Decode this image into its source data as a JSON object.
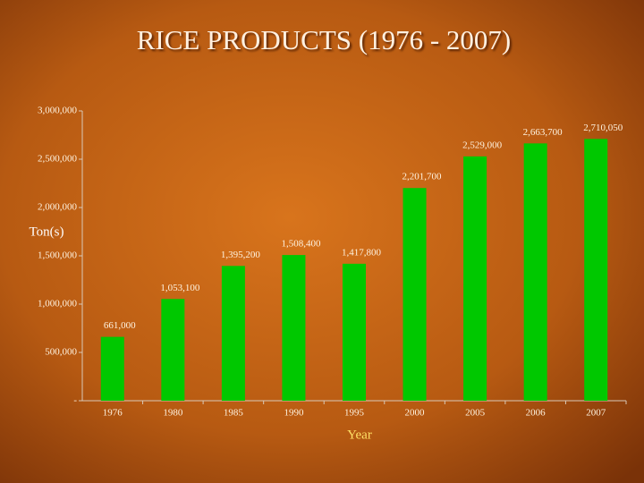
{
  "chart_data": {
    "type": "bar",
    "title": "RICE PRODUCTS (1976 - 2007)",
    "y_label": "Ton(s)",
    "x_label": "Year",
    "categories": [
      "1976",
      "1980",
      "1985",
      "1990",
      "1995",
      "2000",
      "2005",
      "2006",
      "2007"
    ],
    "values": [
      661000,
      1053100,
      1395200,
      1508400,
      1417800,
      2201700,
      2529000,
      2663700,
      2710050
    ],
    "value_labels": [
      "661,000",
      "1,053,100",
      "1,395,200",
      "1,508,400",
      "1,417,800",
      "2,201,700",
      "2,529,000",
      "2,663,700",
      "2,710,050"
    ],
    "color": "#00c800",
    "ylim": [
      0,
      3000000
    ],
    "yticks": [
      {
        "value": 0,
        "label": "-"
      },
      {
        "value": 500000,
        "label": "500,000"
      },
      {
        "value": 1000000,
        "label": "1,000,000"
      },
      {
        "value": 1500000,
        "label": "1,500,000"
      },
      {
        "value": 2000000,
        "label": "2,000,000"
      },
      {
        "value": 2500000,
        "label": "2,500,000"
      },
      {
        "value": 3000000,
        "label": "3,000,000"
      }
    ],
    "grid": false
  }
}
